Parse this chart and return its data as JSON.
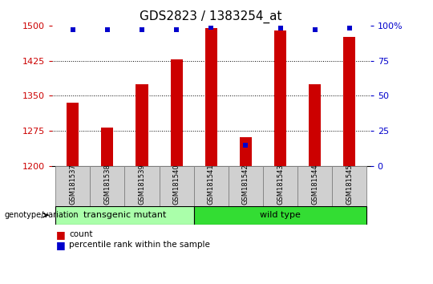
{
  "title": "GDS2823 / 1383254_at",
  "samples": [
    "GSM181537",
    "GSM181538",
    "GSM181539",
    "GSM181540",
    "GSM181541",
    "GSM181542",
    "GSM181543",
    "GSM181544",
    "GSM181545"
  ],
  "counts": [
    1335,
    1283,
    1375,
    1428,
    1495,
    1262,
    1490,
    1375,
    1475
  ],
  "percentile_ranks": [
    97,
    97,
    97,
    97,
    99,
    15,
    98,
    97,
    98
  ],
  "ylim_left": [
    1200,
    1500
  ],
  "ylim_right": [
    0,
    100
  ],
  "yticks_left": [
    1200,
    1275,
    1350,
    1425,
    1500
  ],
  "yticks_right": [
    0,
    25,
    50,
    75,
    100
  ],
  "groups": [
    {
      "label": "transgenic mutant",
      "start": 0,
      "end": 4,
      "color": "#aaffaa"
    },
    {
      "label": "wild type",
      "start": 4,
      "end": 9,
      "color": "#33dd33"
    }
  ],
  "bar_color": "#CC0000",
  "percentile_color": "#0000CC",
  "grid_color": "#000000",
  "title_fontsize": 11,
  "tick_fontsize": 8,
  "label_color_left": "#CC0000",
  "label_color_right": "#0000CC",
  "sample_box_color": "#d0d0d0",
  "group_label_fontsize": 8,
  "legend_red": "#CC0000",
  "legend_blue": "#0000CC",
  "bar_width": 0.35
}
